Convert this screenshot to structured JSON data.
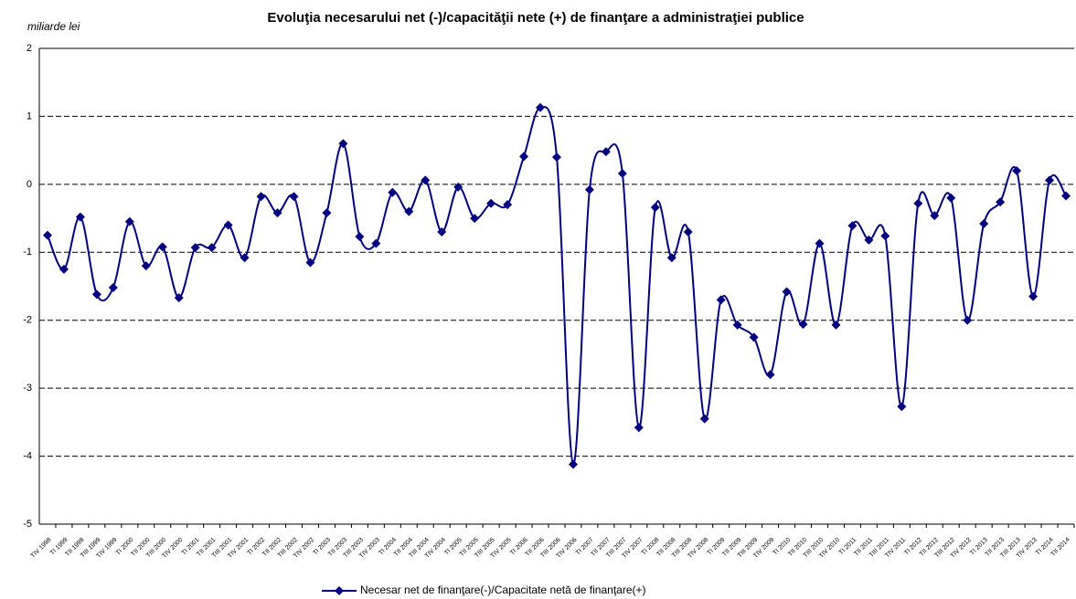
{
  "chart_data": {
    "type": "line",
    "title": "Evoluţia necesarului net (-)/capacităţii nete (+) de finanţare a administraţiei publice",
    "y_label": "miliarde lei",
    "categories": [
      "TIV 1998",
      "TI 1999",
      "TII 1999",
      "TIII 1999",
      "TIV 1999",
      "TI 2000",
      "TII 2000",
      "TIII 2000",
      "TIV 2000",
      "TI 2001",
      "TII 2001",
      "TIII 2001",
      "TIV 2001",
      "TI 2002",
      "TII 2002",
      "TIII 2002",
      "TIV 2002",
      "TI 2003",
      "TII 2003",
      "TIII 2003",
      "TIV 2003",
      "TI 2004",
      "TII 2004",
      "TIII 2004",
      "TIV 2004",
      "TI 2005",
      "TII 2005",
      "TIII 2005",
      "TIV 2005",
      "TI 2006",
      "TII 2006",
      "TIII 2006",
      "TIV 2006",
      "TI 2007",
      "TII 2007",
      "TIII 2007",
      "TIV 2007",
      "TI 2008",
      "TII 2008",
      "TIII 2008",
      "TIV 2008",
      "TI 2009",
      "TII 2009",
      "TIII 2009",
      "TIV 2009",
      "TI 2010",
      "TII 2010",
      "TIII 2010",
      "TIV 2010",
      "TI 2011",
      "TII 2011",
      "TIII 2011",
      "TIV 2011",
      "TI 2012",
      "TII 2012",
      "TIII 2012",
      "TIV 2012",
      "TI 2013",
      "TII 2013",
      "TIII 2013",
      "TIV 2013",
      "TI 2014",
      "TII 2014"
    ],
    "series": [
      {
        "name": "Necesar net de finanţare(-)/Capacitate netă de finanţare(+)",
        "color": "#000080",
        "values": [
          -0.75,
          -1.25,
          -0.48,
          -1.62,
          -1.52,
          -0.55,
          -1.2,
          -0.92,
          -1.67,
          -0.93,
          -0.93,
          -0.6,
          -1.08,
          -0.18,
          -0.42,
          -0.18,
          -1.15,
          -0.42,
          0.6,
          -0.77,
          -0.87,
          -0.12,
          -0.4,
          0.06,
          -0.7,
          -0.04,
          -0.5,
          -0.28,
          -0.3,
          0.41,
          1.13,
          0.4,
          -4.12,
          -0.08,
          0.48,
          0.16,
          -3.58,
          -0.34,
          -1.08,
          -0.7,
          -3.45,
          -1.7,
          -2.07,
          -2.25,
          -2.8,
          -1.58,
          -2.06,
          -0.87,
          -2.07,
          -0.61,
          -0.82,
          -0.76,
          -3.27,
          -0.28,
          -0.46,
          -0.2,
          -2.0,
          -0.58,
          -0.26,
          0.2,
          -1.65,
          0.06,
          -0.17
        ]
      }
    ],
    "ylim": [
      -5,
      2
    ],
    "yticks": [
      -5,
      -4,
      -3,
      -2,
      -1,
      0,
      1,
      2
    ],
    "grid": true,
    "smooth": true,
    "legend": "bottom"
  }
}
